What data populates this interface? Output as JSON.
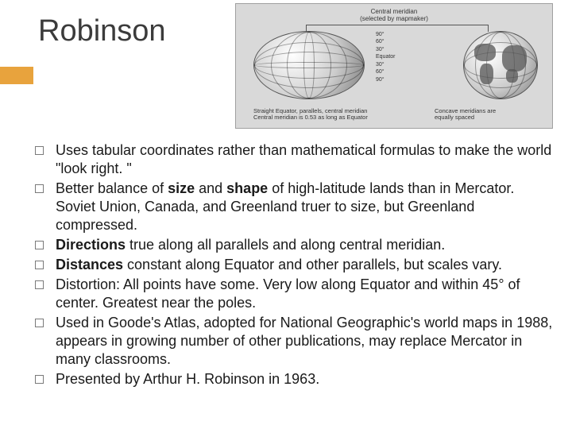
{
  "title": "Robinson",
  "figure": {
    "top_label_line1": "Central meridian",
    "top_label_line2": "(selected by mapmaker)",
    "ticks": [
      "90°",
      "60°",
      "30°",
      "Equator",
      "30°",
      "60°",
      "90°"
    ],
    "bottom_ticks": "120° 60° 0° 60° 120°",
    "caption_left_line1": "Straight Equator, parallels, central meridian",
    "caption_left_line2": "Central meridian is 0.53 as long as Equator",
    "caption_right_line1": "Concave meridians are",
    "caption_right_line2": "equally spaced",
    "bg_color": "#d9d9d9",
    "border_color": "#a0a0a0"
  },
  "accent_color": "#e8a33d",
  "bullets": [
    {
      "html": "Uses tabular coordinates rather than mathematical formulas to make the world \"look right. \""
    },
    {
      "html": "Better balance of <b>size</b> and <b>shape</b> of high-latitude lands than in Mercator. Soviet Union, Canada, and Greenland truer to size, but Greenland compressed."
    },
    {
      "html": "<b>Directions</b> true along all parallels and along central meridian."
    },
    {
      "html": "<b>Distances</b> constant along Equator and other parallels, but scales vary."
    },
    {
      "html": "Distortion: All points have some. Very low along Equator and within 45° of center. Greatest near the poles."
    },
    {
      "html": "Used in Goode's Atlas, adopted for National Geographic's world maps in 1988, appears in growing number of other publications, may replace Mercator in many classrooms."
    },
    {
      "html": "Presented by Arthur H. Robinson in 1963."
    }
  ]
}
